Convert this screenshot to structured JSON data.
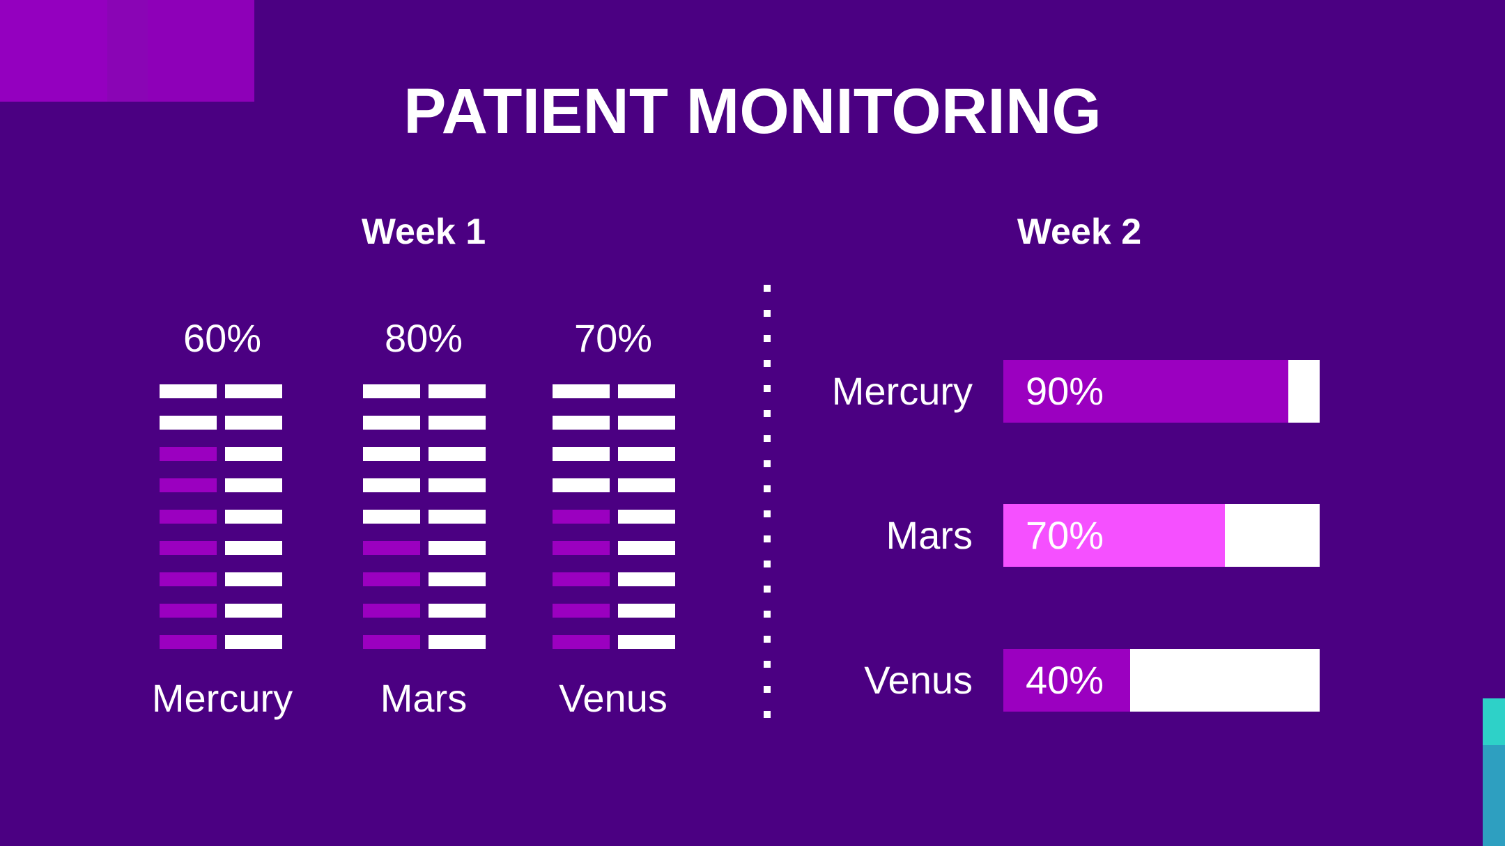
{
  "title": "PATIENT MONITORING",
  "colors": {
    "background": "#4b0082",
    "white": "#ffffff",
    "purple": "#9b00c0",
    "pink": "#f550ff",
    "teal": "#2ed1c8"
  },
  "chart_data": [
    {
      "type": "bar",
      "title": "Week 1",
      "categories": [
        "Mercury",
        "Mars",
        "Venus"
      ],
      "values": [
        60,
        80,
        70
      ],
      "value_labels": [
        "60%",
        "80%",
        "70%"
      ],
      "unit": "%",
      "ylim": [
        0,
        100
      ]
    },
    {
      "type": "bar",
      "orientation": "horizontal",
      "title": "Week 2",
      "categories": [
        "Mercury",
        "Mars",
        "Venus"
      ],
      "values": [
        90,
        70,
        40
      ],
      "value_labels": [
        "90%",
        "70%",
        "40%"
      ],
      "unit": "%",
      "xlim": [
        0,
        100
      ]
    }
  ]
}
